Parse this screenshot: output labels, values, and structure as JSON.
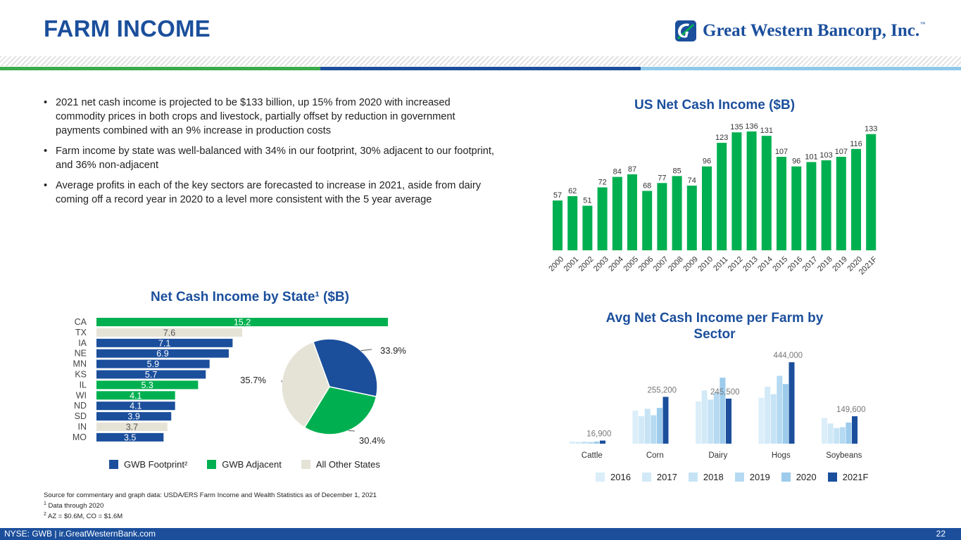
{
  "title": "FARM INCOME",
  "logo": {
    "text": "Great Western Bancorp, Inc.",
    "tm": "™"
  },
  "colors": {
    "footprint": "#1b4f9c",
    "adjacent": "#00b050",
    "other": "#e5e3d6",
    "brand_blue": "#1b4f9c"
  },
  "bullets": [
    "2021 net cash income is projected to be $133 billion, up 15% from 2020 with increased commodity prices in both crops and livestock, partially offset by reduction in government payments combined with an 9% increase in production costs",
    "Farm income by state was well-balanced with 34% in our footprint, 30% adjacent to our footprint, and 36% non-adjacent",
    "Average profits in each of the key sectors are forecasted to increase in 2021, aside from dairy coming off a record year in 2020 to a level more consistent with the 5 year average"
  ],
  "chart_data": [
    {
      "type": "bar",
      "title": "US Net Cash Income ($B)",
      "categories": [
        "2000",
        "2001",
        "2002",
        "2003",
        "2004",
        "2005",
        "2006",
        "2007",
        "2008",
        "2009",
        "2010",
        "2011",
        "2012",
        "2013",
        "2014",
        "2015",
        "2016",
        "2017",
        "2018",
        "2019",
        "2020",
        "2021F"
      ],
      "values": [
        57,
        62,
        51,
        72,
        84,
        87,
        68,
        77,
        85,
        74,
        96,
        123,
        135,
        136,
        131,
        107,
        96,
        101,
        103,
        107,
        116,
        133
      ],
      "color": "#00b050",
      "ylim": [
        0,
        140
      ]
    },
    {
      "type": "bar",
      "orientation": "horizontal",
      "title": "Net Cash Income by State¹ ($B)",
      "categories": [
        "CA",
        "TX",
        "IA",
        "NE",
        "MN",
        "KS",
        "IL",
        "WI",
        "ND",
        "SD",
        "IN",
        "MO"
      ],
      "values": [
        15.2,
        7.6,
        7.1,
        6.9,
        5.9,
        5.7,
        5.3,
        4.1,
        4.1,
        3.9,
        3.7,
        3.5
      ],
      "value_labels": [
        "15.2",
        "7.6",
        "7.1",
        "6.9",
        "5.9",
        "5.7",
        "5.3",
        "4.1",
        "4.1",
        "3.9",
        "3.7",
        "3.5"
      ],
      "groups": [
        "adjacent",
        "other",
        "footprint",
        "footprint",
        "footprint",
        "footprint",
        "adjacent",
        "adjacent",
        "footprint",
        "footprint",
        "other",
        "footprint"
      ],
      "xlim": [
        0,
        15.2
      ]
    },
    {
      "type": "pie",
      "labels": [
        "GWB Footprint²",
        "GWB Adjacent",
        "All Other States"
      ],
      "values": [
        33.9,
        30.4,
        35.7
      ],
      "value_labels": [
        "33.9%",
        "30.4%",
        "35.7%"
      ],
      "groups": [
        "footprint",
        "adjacent",
        "other"
      ]
    },
    {
      "type": "bar",
      "title": "Avg Net Cash Income per Farm by Sector",
      "categories": [
        "Cattle",
        "Corn",
        "Dairy",
        "Hogs",
        "Soybeans"
      ],
      "series": [
        {
          "name": "2016",
          "color": "#dbeef9",
          "values": [
            12000,
            180000,
            230000,
            250000,
            140000
          ]
        },
        {
          "name": "2017",
          "color": "#d2e9f7",
          "values": [
            10000,
            150000,
            290000,
            310000,
            110000
          ]
        },
        {
          "name": "2018",
          "color": "#c6e3f5",
          "values": [
            11000,
            190000,
            240000,
            270000,
            85000
          ]
        },
        {
          "name": "2019",
          "color": "#b5daf2",
          "values": [
            9000,
            155000,
            280000,
            370000,
            90000
          ]
        },
        {
          "name": "2020",
          "color": "#9ccbec",
          "values": [
            11000,
            195000,
            360000,
            325000,
            115000
          ]
        },
        {
          "name": "2021F",
          "color": "#1b4f9c",
          "values": [
            16900,
            255200,
            245500,
            444000,
            149600
          ]
        }
      ],
      "value_labels": [
        "16,900",
        "255,200",
        "245,500",
        "444,000",
        "149,600"
      ],
      "ylim": [
        0,
        460000
      ]
    }
  ],
  "legend_state": [
    {
      "label": "GWB Footprint²",
      "color": "#1b4f9c"
    },
    {
      "label": "GWB Adjacent",
      "color": "#00b050"
    },
    {
      "label": "All Other States",
      "color": "#e5e3d6"
    }
  ],
  "source": {
    "line1": "Source for commentary and graph data: USDA/ERS Farm Income and Wealth Statistics as of December 1, 2021",
    "note1_mark": "1",
    "note1": "Data through 2020",
    "note2_mark": "2",
    "note2": "AZ = $0.6M, CO = $1.6M"
  },
  "footer": {
    "left": "NYSE: GWB  |  ir.GreatWesternBank.com",
    "page": "22"
  }
}
